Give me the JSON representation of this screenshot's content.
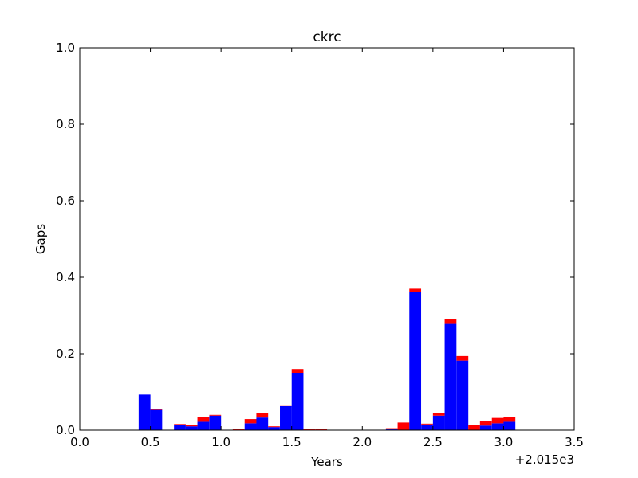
{
  "chart_data": {
    "type": "bar",
    "stacked": true,
    "title": "ckrc",
    "xlabel": "Years",
    "ylabel": "Gaps",
    "x_offset_label": "+2.015e3",
    "xlim": [
      0.0,
      3.5
    ],
    "ylim": [
      0.0,
      1.0
    ],
    "xticks": [
      "0.0",
      "0.5",
      "1.0",
      "1.5",
      "2.0",
      "2.5",
      "3.0",
      "3.5"
    ],
    "yticks": [
      "0.0",
      "0.2",
      "0.4",
      "0.6",
      "0.8",
      "1.0"
    ],
    "grid": false,
    "bin_width": 0.0833,
    "bin_starts": [
      0.417,
      0.5,
      0.667,
      0.75,
      0.833,
      0.917,
      1.083,
      1.167,
      1.25,
      1.333,
      1.417,
      1.5,
      1.583,
      1.667,
      2.083,
      2.167,
      2.25,
      2.333,
      2.417,
      2.5,
      2.583,
      2.667,
      2.75,
      2.833,
      2.917,
      3.0
    ],
    "series": [
      {
        "color": "#0000ff",
        "values": [
          0.093,
          0.053,
          0.013,
          0.01,
          0.022,
          0.038,
          0.0,
          0.018,
          0.033,
          0.008,
          0.063,
          0.15,
          0.0,
          0.0,
          0.0,
          0.002,
          0.0,
          0.362,
          0.015,
          0.038,
          0.278,
          0.182,
          0.0,
          0.012,
          0.018,
          0.022
        ]
      },
      {
        "color": "#ff0000",
        "values": [
          0.0,
          0.002,
          0.003,
          0.003,
          0.013,
          0.002,
          0.002,
          0.011,
          0.011,
          0.002,
          0.002,
          0.01,
          0.002,
          0.002,
          0.001,
          0.003,
          0.02,
          0.008,
          0.002,
          0.006,
          0.012,
          0.012,
          0.014,
          0.012,
          0.014,
          0.012
        ]
      }
    ]
  }
}
